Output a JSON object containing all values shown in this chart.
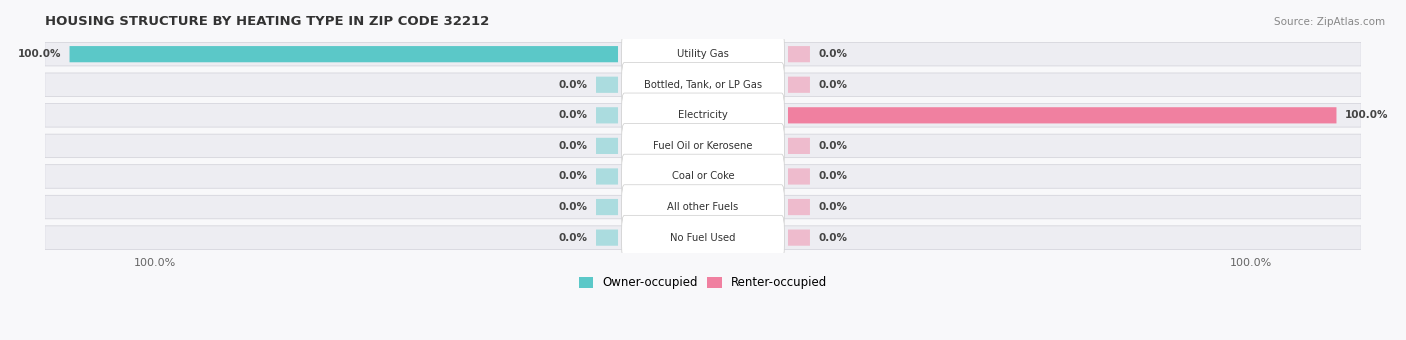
{
  "title": "HOUSING STRUCTURE BY HEATING TYPE IN ZIP CODE 32212",
  "source": "Source: ZipAtlas.com",
  "categories": [
    "Utility Gas",
    "Bottled, Tank, or LP Gas",
    "Electricity",
    "Fuel Oil or Kerosene",
    "Coal or Coke",
    "All other Fuels",
    "No Fuel Used"
  ],
  "owner_values": [
    100.0,
    0.0,
    0.0,
    0.0,
    0.0,
    0.0,
    0.0
  ],
  "renter_values": [
    0.0,
    0.0,
    100.0,
    0.0,
    0.0,
    0.0,
    0.0
  ],
  "owner_color": "#5BC8C8",
  "renter_color": "#F080A0",
  "owner_label": "Owner-occupied",
  "renter_label": "Renter-occupied",
  "row_bg_color": "#EDEDF2",
  "label_bg_color": "#FFFFFF",
  "title_color": "#333333",
  "max_value": 100.0,
  "figsize": [
    14.06,
    3.4
  ],
  "dpi": 100
}
